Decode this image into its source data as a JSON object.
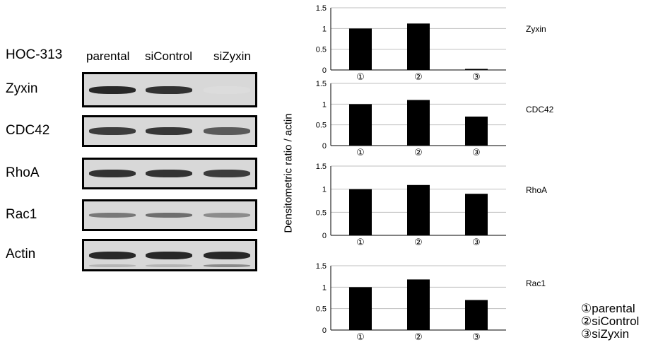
{
  "figure": {
    "cell_line": "HOC-313",
    "lanes": [
      "parental",
      "siControl",
      "siZyxin"
    ],
    "blots": [
      {
        "name": "Zyxin",
        "band_intensity": [
          0.95,
          0.9,
          0.05
        ]
      },
      {
        "name": "CDC42",
        "band_intensity": [
          0.85,
          0.88,
          0.7
        ]
      },
      {
        "name": "RhoA",
        "band_intensity": [
          0.9,
          0.9,
          0.85
        ]
      },
      {
        "name": "Rac1",
        "band_intensity": [
          0.55,
          0.6,
          0.45
        ]
      },
      {
        "name": "Actin",
        "band_intensity": [
          0.95,
          0.95,
          0.95
        ]
      }
    ],
    "y_axis_label": "Densitometric ratio / actin",
    "legend": [
      "①parental",
      "②siControl",
      "③siZyxin"
    ],
    "colors": {
      "bar": "#000000",
      "grid": "#bfbfbf",
      "blot_bg": "#d8d8d8",
      "band": "#2a2a2a"
    }
  },
  "chart_data": [
    {
      "type": "bar",
      "title": "Zyxin",
      "categories": [
        "①",
        "②",
        "③"
      ],
      "values": [
        1.0,
        1.12,
        0.02
      ],
      "ylim": [
        0,
        1.5
      ],
      "yticks": [
        "0",
        "0.5",
        "1",
        "1.5"
      ],
      "grid": true
    },
    {
      "type": "bar",
      "title": "CDC42",
      "categories": [
        "①",
        "②",
        "③"
      ],
      "values": [
        1.0,
        1.1,
        0.7
      ],
      "ylim": [
        0,
        1.5
      ],
      "yticks": [
        "0",
        "0.5",
        "1",
        "1.5"
      ],
      "grid": true
    },
    {
      "type": "bar",
      "title": "RhoA",
      "categories": [
        "①",
        "②",
        "③"
      ],
      "values": [
        1.0,
        1.09,
        0.9
      ],
      "ylim": [
        0,
        1.5
      ],
      "yticks": [
        "0",
        "0.5",
        "1",
        "1.5"
      ],
      "grid": true
    },
    {
      "type": "bar",
      "title": "Rac1",
      "categories": [
        "①",
        "②",
        "③"
      ],
      "values": [
        1.0,
        1.18,
        0.7
      ],
      "ylim": [
        0,
        1.5
      ],
      "yticks": [
        "0",
        "0.5",
        "1",
        "1.5"
      ],
      "grid": true
    }
  ]
}
